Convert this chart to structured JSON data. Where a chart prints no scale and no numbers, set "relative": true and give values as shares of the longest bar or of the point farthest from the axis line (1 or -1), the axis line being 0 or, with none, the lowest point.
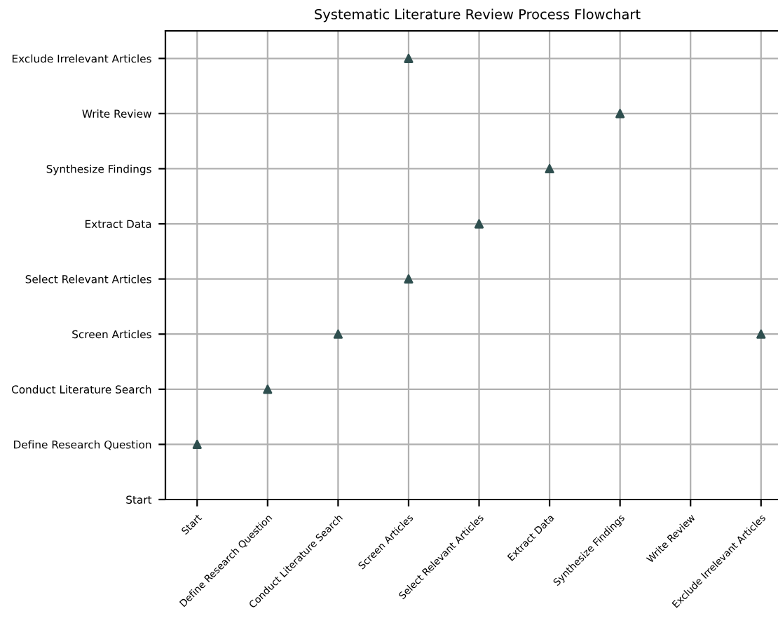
{
  "chart_data": {
    "type": "scatter",
    "title": "Systematic Literature Review Process Flowchart",
    "categories": [
      "Start",
      "Define Research Question",
      "Conduct Literature Search",
      "Screen Articles",
      "Select Relevant Articles",
      "Extract Data",
      "Synthesize Findings",
      "Write Review",
      "Exclude Irrelevant Articles"
    ],
    "y_categories": [
      "Exclude Irrelevant Articles",
      "Write Review",
      "Synthesize Findings",
      "Extract Data",
      "Select Relevant Articles",
      "Screen Articles",
      "Conduct Literature Search",
      "Define Research Question",
      "Start"
    ],
    "series": [
      {
        "color": "#2f4f4f",
        "x": [
          "Start",
          "Define Research Question",
          "Conduct Literature Search",
          "Screen Articles",
          "Screen Articles",
          "Select Relevant Articles",
          "Extract Data",
          "Synthesize Findings",
          "Exclude Irrelevant Articles"
        ],
        "values": [
          0.125,
          0.25,
          0.375,
          0.5,
          1,
          0.625,
          0.75,
          0.875,
          0.375
        ]
      }
    ],
    "relative": true,
    "grid": true,
    "marker": "triangle"
  }
}
